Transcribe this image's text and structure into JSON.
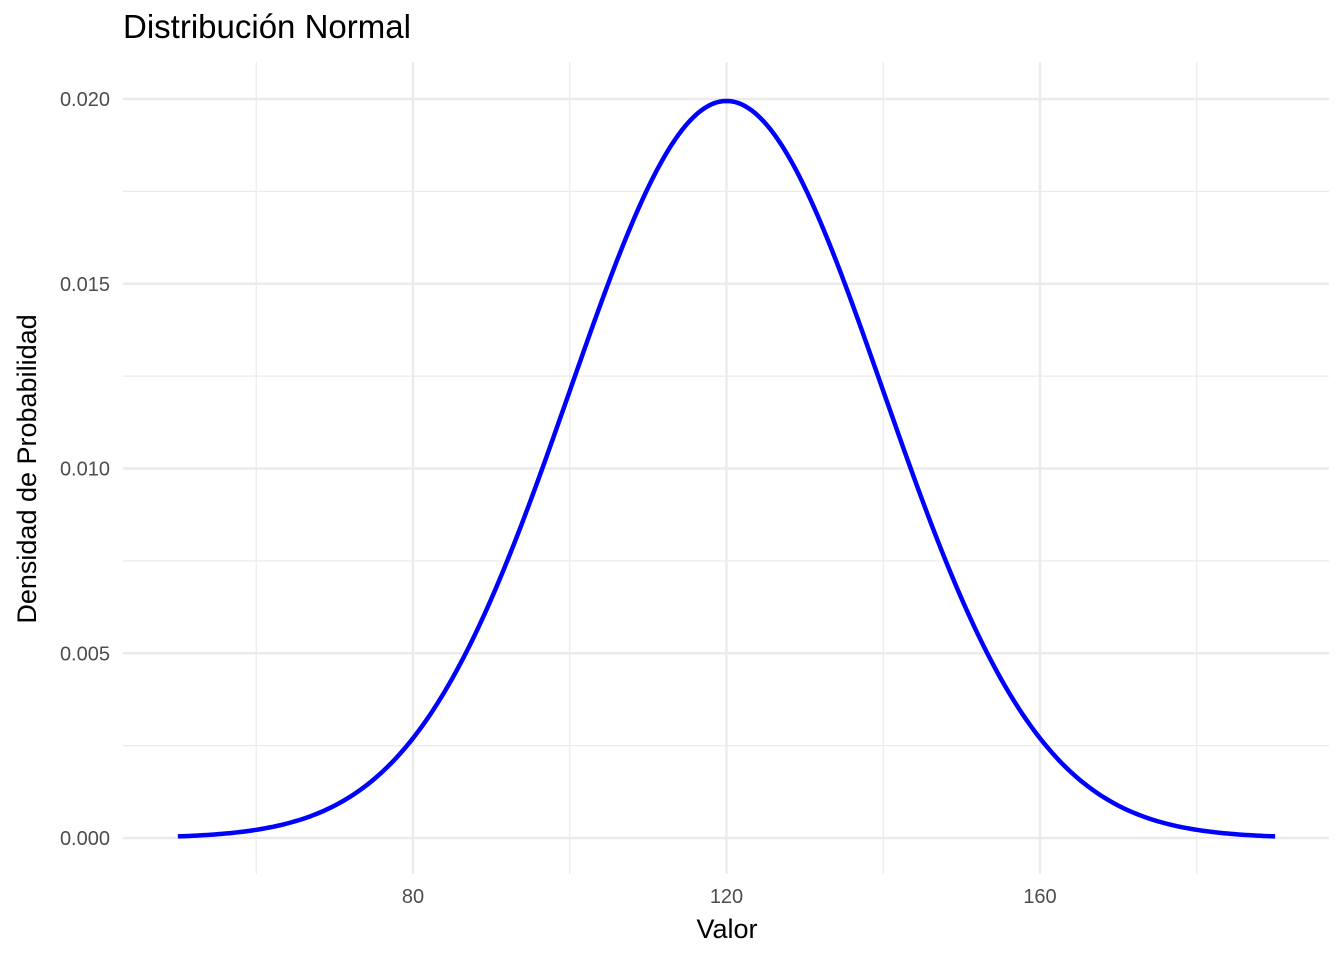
{
  "chart_data": {
    "type": "line",
    "title": "Distribución Normal",
    "xlabel": "Valor",
    "ylabel": "Densidad de Probabilidad",
    "distribution": {
      "family": "normal",
      "mean": 120,
      "sd": 20
    },
    "x_range": [
      50,
      190
    ],
    "xlim": [
      50,
      190
    ],
    "ylim": [
      0,
      0.02
    ],
    "x_ticks": [
      80,
      120,
      160
    ],
    "x_tick_labels": [
      "80",
      "120",
      "160"
    ],
    "y_ticks": [
      0,
      0.005,
      0.01,
      0.015,
      0.02
    ],
    "y_tick_labels": [
      "0.000",
      "0.005",
      "0.010",
      "0.015",
      "0.020"
    ],
    "series": [
      {
        "color": "#0000ff",
        "x": [
          50,
          60,
          70,
          80,
          90,
          100,
          110,
          120,
          130,
          140,
          150,
          160,
          170,
          180,
          190
        ],
        "y": [
          4.4e-05,
          0.000222,
          0.000876,
          0.0027,
          0.006476,
          0.0121,
          0.0176,
          0.01995,
          0.0176,
          0.0121,
          0.006476,
          0.0027,
          0.000876,
          0.000222,
          4.4e-05
        ]
      }
    ],
    "grid": true,
    "background": "#ffffff",
    "grid_color": "#ebebeb"
  }
}
